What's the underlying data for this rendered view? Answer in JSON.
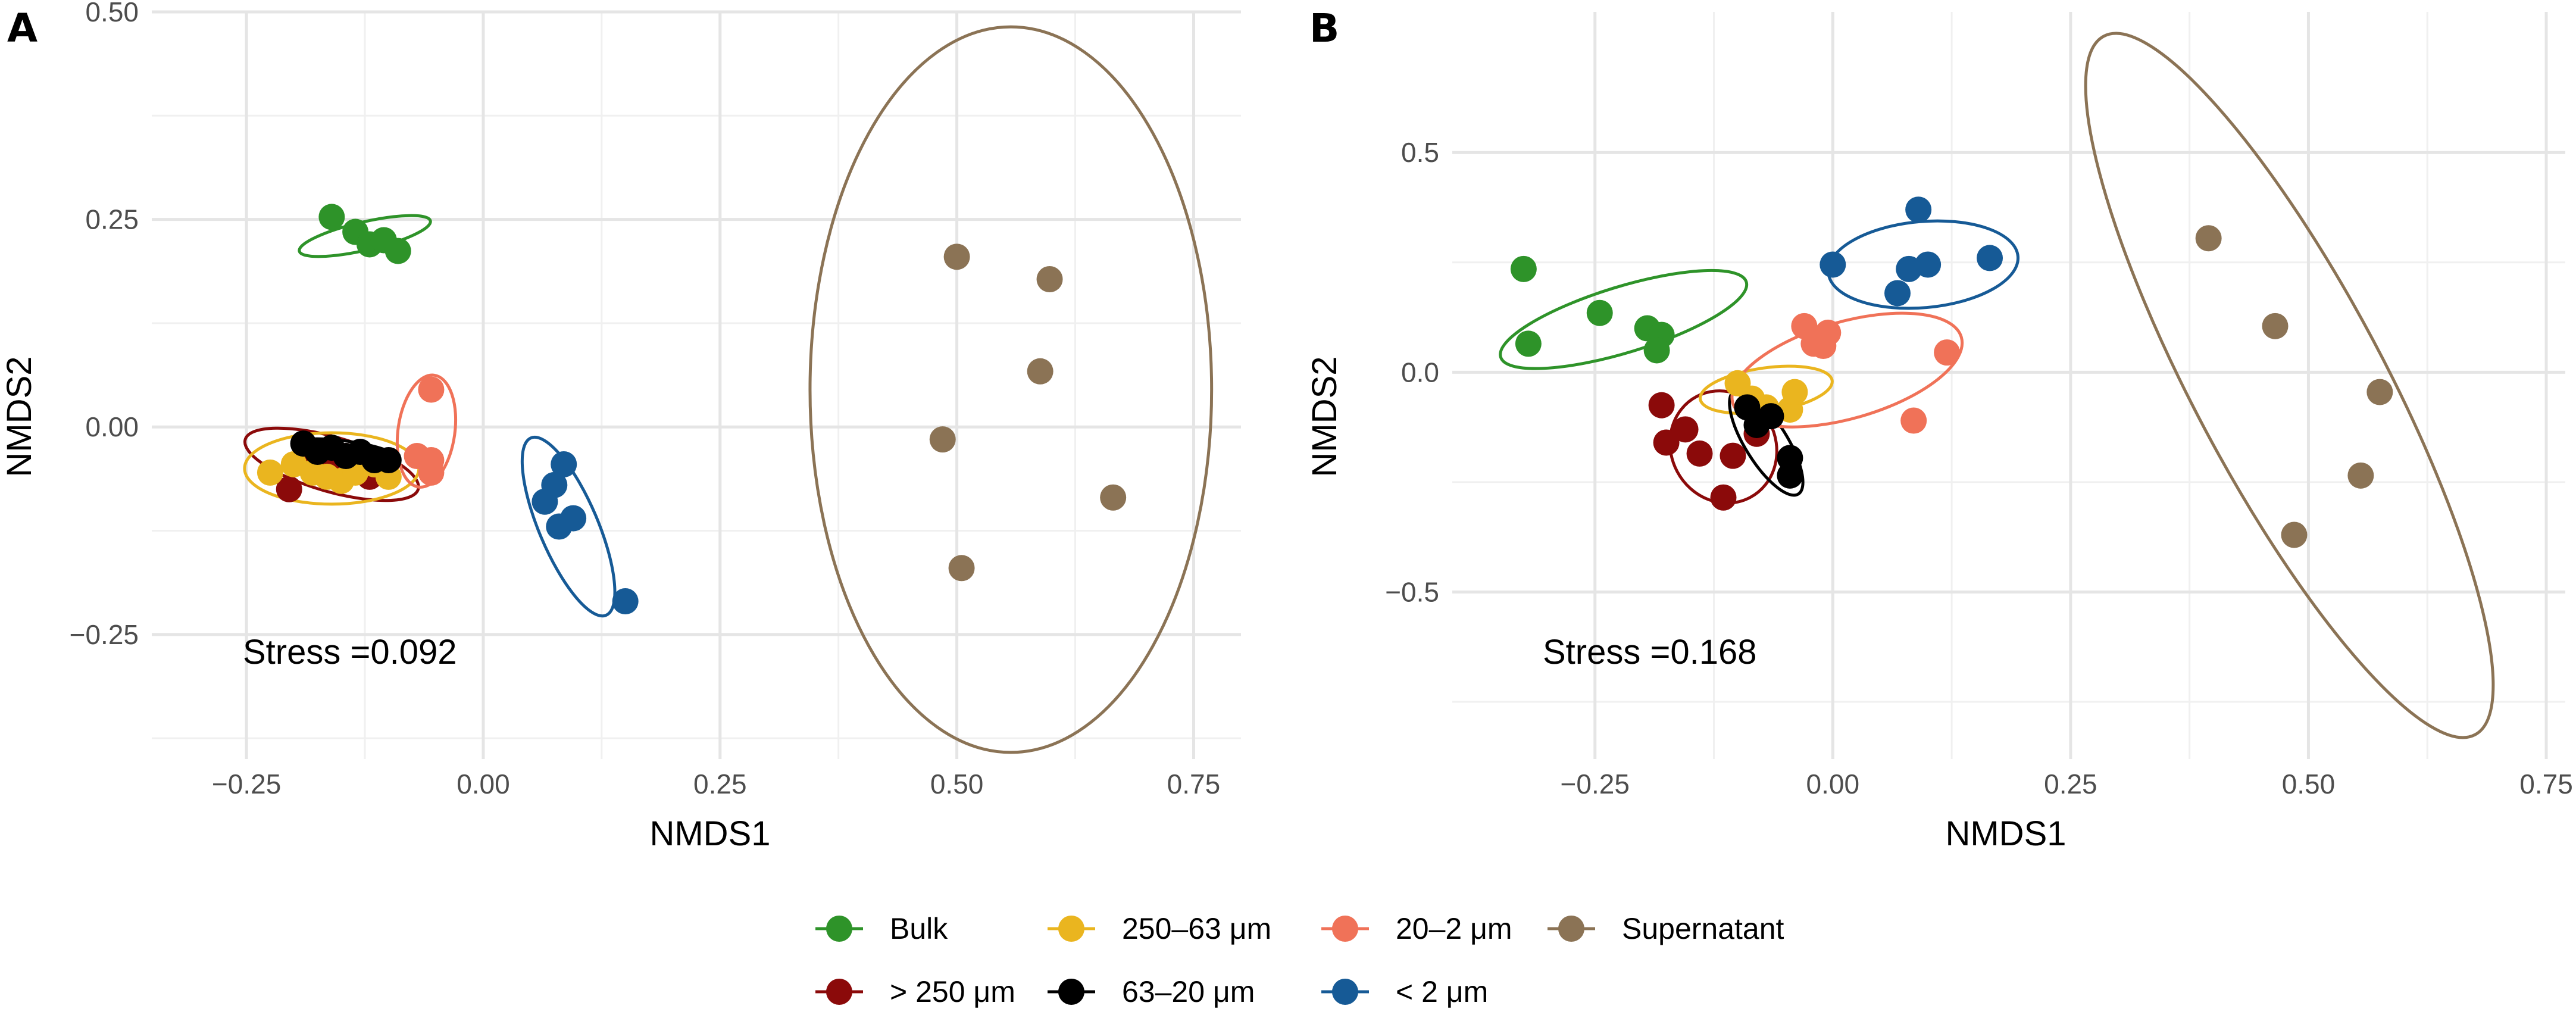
{
  "groups": [
    {
      "key": "bulk",
      "label": "Bulk",
      "color": "#2e9329"
    },
    {
      "key": "gt250",
      "label": "> 250 μm",
      "color": "#8b0a0a"
    },
    {
      "key": "g250_63",
      "label": "250–63 μm",
      "color": "#eab51f"
    },
    {
      "key": "g63_20",
      "label": "63–20 μm",
      "color": "#000000"
    },
    {
      "key": "g20_2",
      "label": "20–2 μm",
      "color": "#f07258"
    },
    {
      "key": "lt2",
      "label": "< 2 μm",
      "color": "#165a96"
    },
    {
      "key": "super",
      "label": "Supernatant",
      "color": "#8b7355"
    }
  ],
  "chart_data": [
    {
      "panel": "A",
      "type": "scatter",
      "xlabel": "NMDS1",
      "ylabel": "NMDS2",
      "xlim": [
        -0.35,
        0.8
      ],
      "ylim": [
        -0.4,
        0.5
      ],
      "xticks": [
        -0.25,
        0.0,
        0.25,
        0.5,
        0.75
      ],
      "xtick_labels": [
        "−0.25",
        "0.00",
        "0.25",
        "0.50",
        "0.75"
      ],
      "yticks": [
        -0.25,
        0.0,
        0.25,
        0.5
      ],
      "ytick_labels": [
        "−0.25",
        "0.00",
        "0.25",
        "0.50"
      ],
      "stress": "Stress =0.092",
      "series": [
        {
          "group": "bulk",
          "points": [
            [
              -0.16,
              0.253
            ],
            [
              -0.135,
              0.235
            ],
            [
              -0.12,
              0.22
            ],
            [
              -0.105,
              0.225
            ],
            [
              -0.09,
              0.212
            ]
          ],
          "ellipse": {
            "cx": -0.125,
            "cy": 0.23,
            "rx": 0.071,
            "ry": 0.017,
            "angle": -13
          }
        },
        {
          "group": "gt250",
          "points": [
            [
              -0.205,
              -0.075
            ],
            [
              -0.185,
              -0.03
            ],
            [
              -0.165,
              -0.045
            ],
            [
              -0.145,
              -0.035
            ],
            [
              -0.12,
              -0.06
            ]
          ],
          "ellipse": {
            "cx": -0.16,
            "cy": -0.045,
            "rx": 0.095,
            "ry": 0.033,
            "angle": 16
          }
        },
        {
          "group": "g250_63",
          "points": [
            [
              -0.225,
              -0.055
            ],
            [
              -0.2,
              -0.045
            ],
            [
              -0.18,
              -0.055
            ],
            [
              -0.165,
              -0.06
            ],
            [
              -0.15,
              -0.065
            ],
            [
              -0.135,
              -0.055
            ],
            [
              -0.115,
              -0.045
            ],
            [
              -0.1,
              -0.06
            ]
          ],
          "ellipse": {
            "cx": -0.16,
            "cy": -0.05,
            "rx": 0.092,
            "ry": 0.043,
            "angle": 0
          }
        },
        {
          "group": "g63_20",
          "points": [
            [
              -0.19,
              -0.02
            ],
            [
              -0.175,
              -0.03
            ],
            [
              -0.16,
              -0.025
            ],
            [
              -0.145,
              -0.035
            ],
            [
              -0.13,
              -0.03
            ],
            [
              -0.115,
              -0.04
            ],
            [
              -0.1,
              -0.04
            ]
          ],
          "ellipse": {
            "cx": -0.145,
            "cy": -0.03,
            "rx": 0.057,
            "ry": 0.013,
            "angle": 8
          }
        },
        {
          "group": "g20_2",
          "points": [
            [
              -0.055,
              0.045
            ],
            [
              -0.07,
              -0.035
            ],
            [
              -0.055,
              -0.04
            ],
            [
              -0.055,
              -0.055
            ]
          ],
          "ellipse": {
            "cx": -0.06,
            "cy": -0.005,
            "rx": 0.03,
            "ry": 0.068,
            "angle": 8
          }
        },
        {
          "group": "lt2",
          "points": [
            [
              0.085,
              -0.045
            ],
            [
              0.075,
              -0.07
            ],
            [
              0.065,
              -0.09
            ],
            [
              0.08,
              -0.12
            ],
            [
              0.095,
              -0.11
            ],
            [
              0.15,
              -0.21
            ]
          ],
          "ellipse": {
            "cx": 0.09,
            "cy": -0.12,
            "rx": 0.031,
            "ry": 0.116,
            "angle": -23
          }
        },
        {
          "group": "super",
          "points": [
            [
              0.5,
              0.205
            ],
            [
              0.598,
              0.178
            ],
            [
              0.588,
              0.067
            ],
            [
              0.485,
              -0.015
            ],
            [
              0.665,
              -0.085
            ],
            [
              0.505,
              -0.17
            ]
          ],
          "ellipse": {
            "cx": 0.557,
            "cy": 0.045,
            "rx": 0.212,
            "ry": 0.437,
            "angle": 0
          }
        }
      ]
    },
    {
      "panel": "B",
      "type": "scatter",
      "xlabel": "NMDS1",
      "ylabel": "NMDS2",
      "xlim": [
        -0.4,
        0.77
      ],
      "ylim": [
        -0.88,
        0.82
      ],
      "xticks": [
        -0.25,
        0.0,
        0.25,
        0.5,
        0.75
      ],
      "xtick_labels": [
        "−0.25",
        "0.00",
        "0.25",
        "0.50",
        "0.75"
      ],
      "yticks": [
        -0.5,
        0.0,
        0.5
      ],
      "ytick_labels": [
        "−0.5",
        "0.0",
        "0.5"
      ],
      "stress": "Stress =0.168",
      "series": [
        {
          "group": "bulk",
          "points": [
            [
              -0.325,
              0.235
            ],
            [
              -0.32,
              0.065
            ],
            [
              -0.245,
              0.135
            ],
            [
              -0.195,
              0.1
            ],
            [
              -0.18,
              0.085
            ],
            [
              -0.185,
              0.05
            ]
          ],
          "ellipse": {
            "cx": -0.22,
            "cy": 0.12,
            "rx": 0.135,
            "ry": 0.075,
            "angle": -17
          }
        },
        {
          "group": "gt250",
          "points": [
            [
              -0.18,
              -0.075
            ],
            [
              -0.175,
              -0.16
            ],
            [
              -0.155,
              -0.13
            ],
            [
              -0.14,
              -0.185
            ],
            [
              -0.115,
              -0.285
            ],
            [
              -0.105,
              -0.19
            ],
            [
              -0.08,
              -0.14
            ]
          ],
          "ellipse": {
            "cx": -0.115,
            "cy": -0.17,
            "rx": 0.055,
            "ry": 0.13,
            "angle": -28
          }
        },
        {
          "group": "g250_63",
          "points": [
            [
              -0.1,
              -0.025
            ],
            [
              -0.085,
              -0.06
            ],
            [
              -0.07,
              -0.08
            ],
            [
              -0.045,
              -0.085
            ],
            [
              -0.04,
              -0.045
            ]
          ],
          "ellipse": {
            "cx": -0.07,
            "cy": -0.04,
            "rx": 0.07,
            "ry": 0.05,
            "angle": -8
          }
        },
        {
          "group": "g63_20",
          "points": [
            [
              -0.09,
              -0.08
            ],
            [
              -0.08,
              -0.12
            ],
            [
              -0.065,
              -0.1
            ],
            [
              -0.045,
              -0.195
            ],
            [
              -0.045,
              -0.235
            ]
          ],
          "ellipse": {
            "cx": -0.07,
            "cy": -0.16,
            "rx": 0.022,
            "ry": 0.138,
            "angle": -32
          }
        },
        {
          "group": "g20_2",
          "points": [
            [
              -0.03,
              0.105
            ],
            [
              -0.02,
              0.065
            ],
            [
              -0.01,
              0.06
            ],
            [
              -0.005,
              0.09
            ],
            [
              0.085,
              -0.11
            ],
            [
              0.12,
              0.045
            ]
          ],
          "ellipse": {
            "cx": 0.015,
            "cy": 0.005,
            "rx": 0.125,
            "ry": 0.11,
            "angle": -16
          }
        },
        {
          "group": "lt2",
          "points": [
            [
              0.0,
              0.245
            ],
            [
              0.068,
              0.18
            ],
            [
              0.08,
              0.235
            ],
            [
              0.1,
              0.245
            ],
            [
              0.09,
              0.37
            ],
            [
              0.165,
              0.26
            ]
          ],
          "ellipse": {
            "cx": 0.095,
            "cy": 0.245,
            "rx": 0.1,
            "ry": 0.098,
            "angle": -5
          }
        },
        {
          "group": "super",
          "points": [
            [
              0.395,
              0.305
            ],
            [
              0.465,
              0.105
            ],
            [
              0.575,
              -0.045
            ],
            [
              0.555,
              -0.235
            ],
            [
              0.485,
              -0.37
            ]
          ],
          "ellipse": {
            "cx": 0.48,
            "cy": -0.03,
            "rx": 0.1,
            "ry": 0.9,
            "angle": -28
          }
        }
      ]
    }
  ]
}
